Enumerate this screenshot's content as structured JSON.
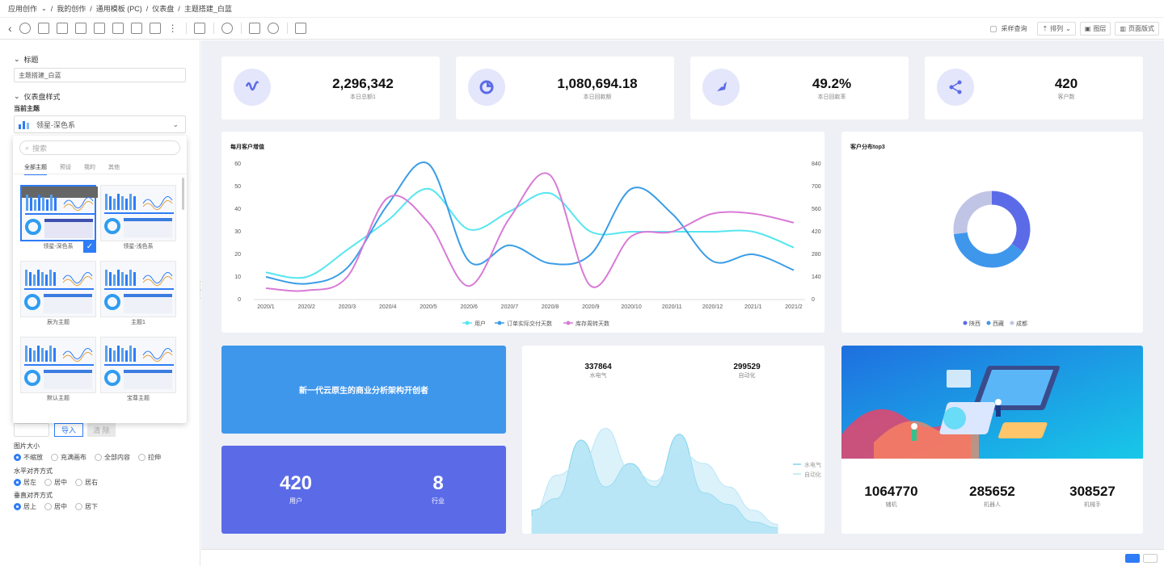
{
  "breadcrumb": {
    "items": [
      "应用创作",
      "我的创作",
      "通用模板 (PC)",
      "仪表盘",
      "主题搭建_白蓝"
    ],
    "separator": "/"
  },
  "toolbar": {
    "sample_query_label": "采样查询",
    "arrange_label": "排列",
    "layers_label": "图层",
    "page_format_label": "页面版式"
  },
  "left_panel": {
    "title_section": "标题",
    "title_value": "主题搭建_白蓝",
    "style_section": "仪表盘样式",
    "current_theme_label": "当前主题",
    "current_theme": "领星-深色系",
    "search_placeholder": "搜索",
    "tabs": [
      "全部主题",
      "预设",
      "我的",
      "其他"
    ],
    "themes": [
      {
        "name": "领星-深色系",
        "selected": true
      },
      {
        "name": "领星-浅色系",
        "selected": false
      },
      {
        "name": "辰为主题",
        "selected": false
      },
      {
        "name": "主题1",
        "selected": false
      },
      {
        "name": "默认主题",
        "selected": false
      },
      {
        "name": "宝尊主题",
        "selected": false
      }
    ],
    "import_label": "导入",
    "clear_label": "清 除",
    "image_size_label": "图片大小",
    "image_size_options": [
      "不缩放",
      "充满画布",
      "全部内容",
      "拉伸"
    ],
    "h_align_label": "水平对齐方式",
    "h_align_options": [
      "居左",
      "居中",
      "居右"
    ],
    "v_align_label": "垂直对齐方式",
    "v_align_options": [
      "居上",
      "居中",
      "居下"
    ]
  },
  "kpis": [
    {
      "value": "2,296,342",
      "label": "本日总额1",
      "icon": "wave-icon"
    },
    {
      "value": "1,080,694.18",
      "label": "本日回款额",
      "icon": "pie-icon"
    },
    {
      "value": "49.2%",
      "label": "本日回款率",
      "icon": "rocket-icon"
    },
    {
      "value": "420",
      "label": "客户数",
      "icon": "share-icon"
    }
  ],
  "colors": {
    "primary": "#2e7cf6",
    "cyan": "#55e6f0",
    "blue": "#3a9de6",
    "pink": "#d87ad6",
    "indigo": "#6070e6",
    "blue_card": "#3f97ec",
    "purple_card": "#5b6be8"
  },
  "line_chart": {
    "title": "每月客户增值",
    "chart_data": {
      "type": "line",
      "categories": [
        "2020/1",
        "2020/2",
        "2020/3",
        "2020/4",
        "2020/5",
        "2020/6",
        "2020/7",
        "2020/8",
        "2020/9",
        "2020/10",
        "2020/11",
        "2020/12",
        "2021/1",
        "2021/2"
      ],
      "yticks_left": [
        "0",
        "10",
        "20",
        "30",
        "40",
        "50",
        "60"
      ],
      "yticks_right": [
        "0",
        "140",
        "280",
        "420",
        "560",
        "700",
        "840"
      ],
      "ylim": [
        0,
        60
      ],
      "series": [
        {
          "name": "用户",
          "color": "#55e6f0",
          "values": [
            12,
            10,
            22,
            35,
            49,
            31,
            39,
            47,
            30,
            30,
            30,
            30,
            30,
            23
          ]
        },
        {
          "name": "订单实际交付天数",
          "color": "#3a9de6",
          "values": [
            10,
            7,
            14,
            42,
            60,
            17,
            24,
            16,
            20,
            49,
            38,
            17,
            20,
            13
          ]
        },
        {
          "name": "库存周转天数",
          "color": "#d87ad6",
          "values": [
            5,
            4,
            10,
            45,
            34,
            6,
            36,
            55,
            6,
            28,
            30,
            38,
            38,
            34
          ]
        }
      ]
    }
  },
  "donut_chart": {
    "title": "客户分布top3",
    "chart_data": {
      "type": "pie",
      "categories": [
        "陕西",
        "西藏",
        "成都"
      ],
      "values": [
        35,
        38,
        27
      ],
      "colors": [
        "#5b6be8",
        "#3f97ec",
        "#c0c5e6"
      ]
    }
  },
  "banner_text": "新一代云原生的商业分析架构开创者",
  "stats_card": {
    "users_value": "420",
    "users_label": "用户",
    "industries_value": "8",
    "industries_label": "行业"
  },
  "area_card": {
    "v1": "337864",
    "l1": "水电气",
    "v2": "299529",
    "l2": "自动化",
    "chart_data": {
      "type": "area",
      "series": [
        {
          "name": "水电气",
          "color": "#7fd3ee",
          "values": [
            20,
            30,
            80,
            40,
            60,
            40,
            85,
            35,
            25,
            10,
            5
          ]
        },
        {
          "name": "自动化",
          "color": "#b8e6f6",
          "values": [
            15,
            50,
            60,
            90,
            55,
            45,
            70,
            60,
            40,
            20,
            8
          ]
        }
      ]
    }
  },
  "illustration_card": {
    "m1_value": "1064770",
    "m1_label": "辅机",
    "m2_value": "285652",
    "m2_label": "机器人",
    "m3_value": "308527",
    "m3_label": "机械手"
  }
}
